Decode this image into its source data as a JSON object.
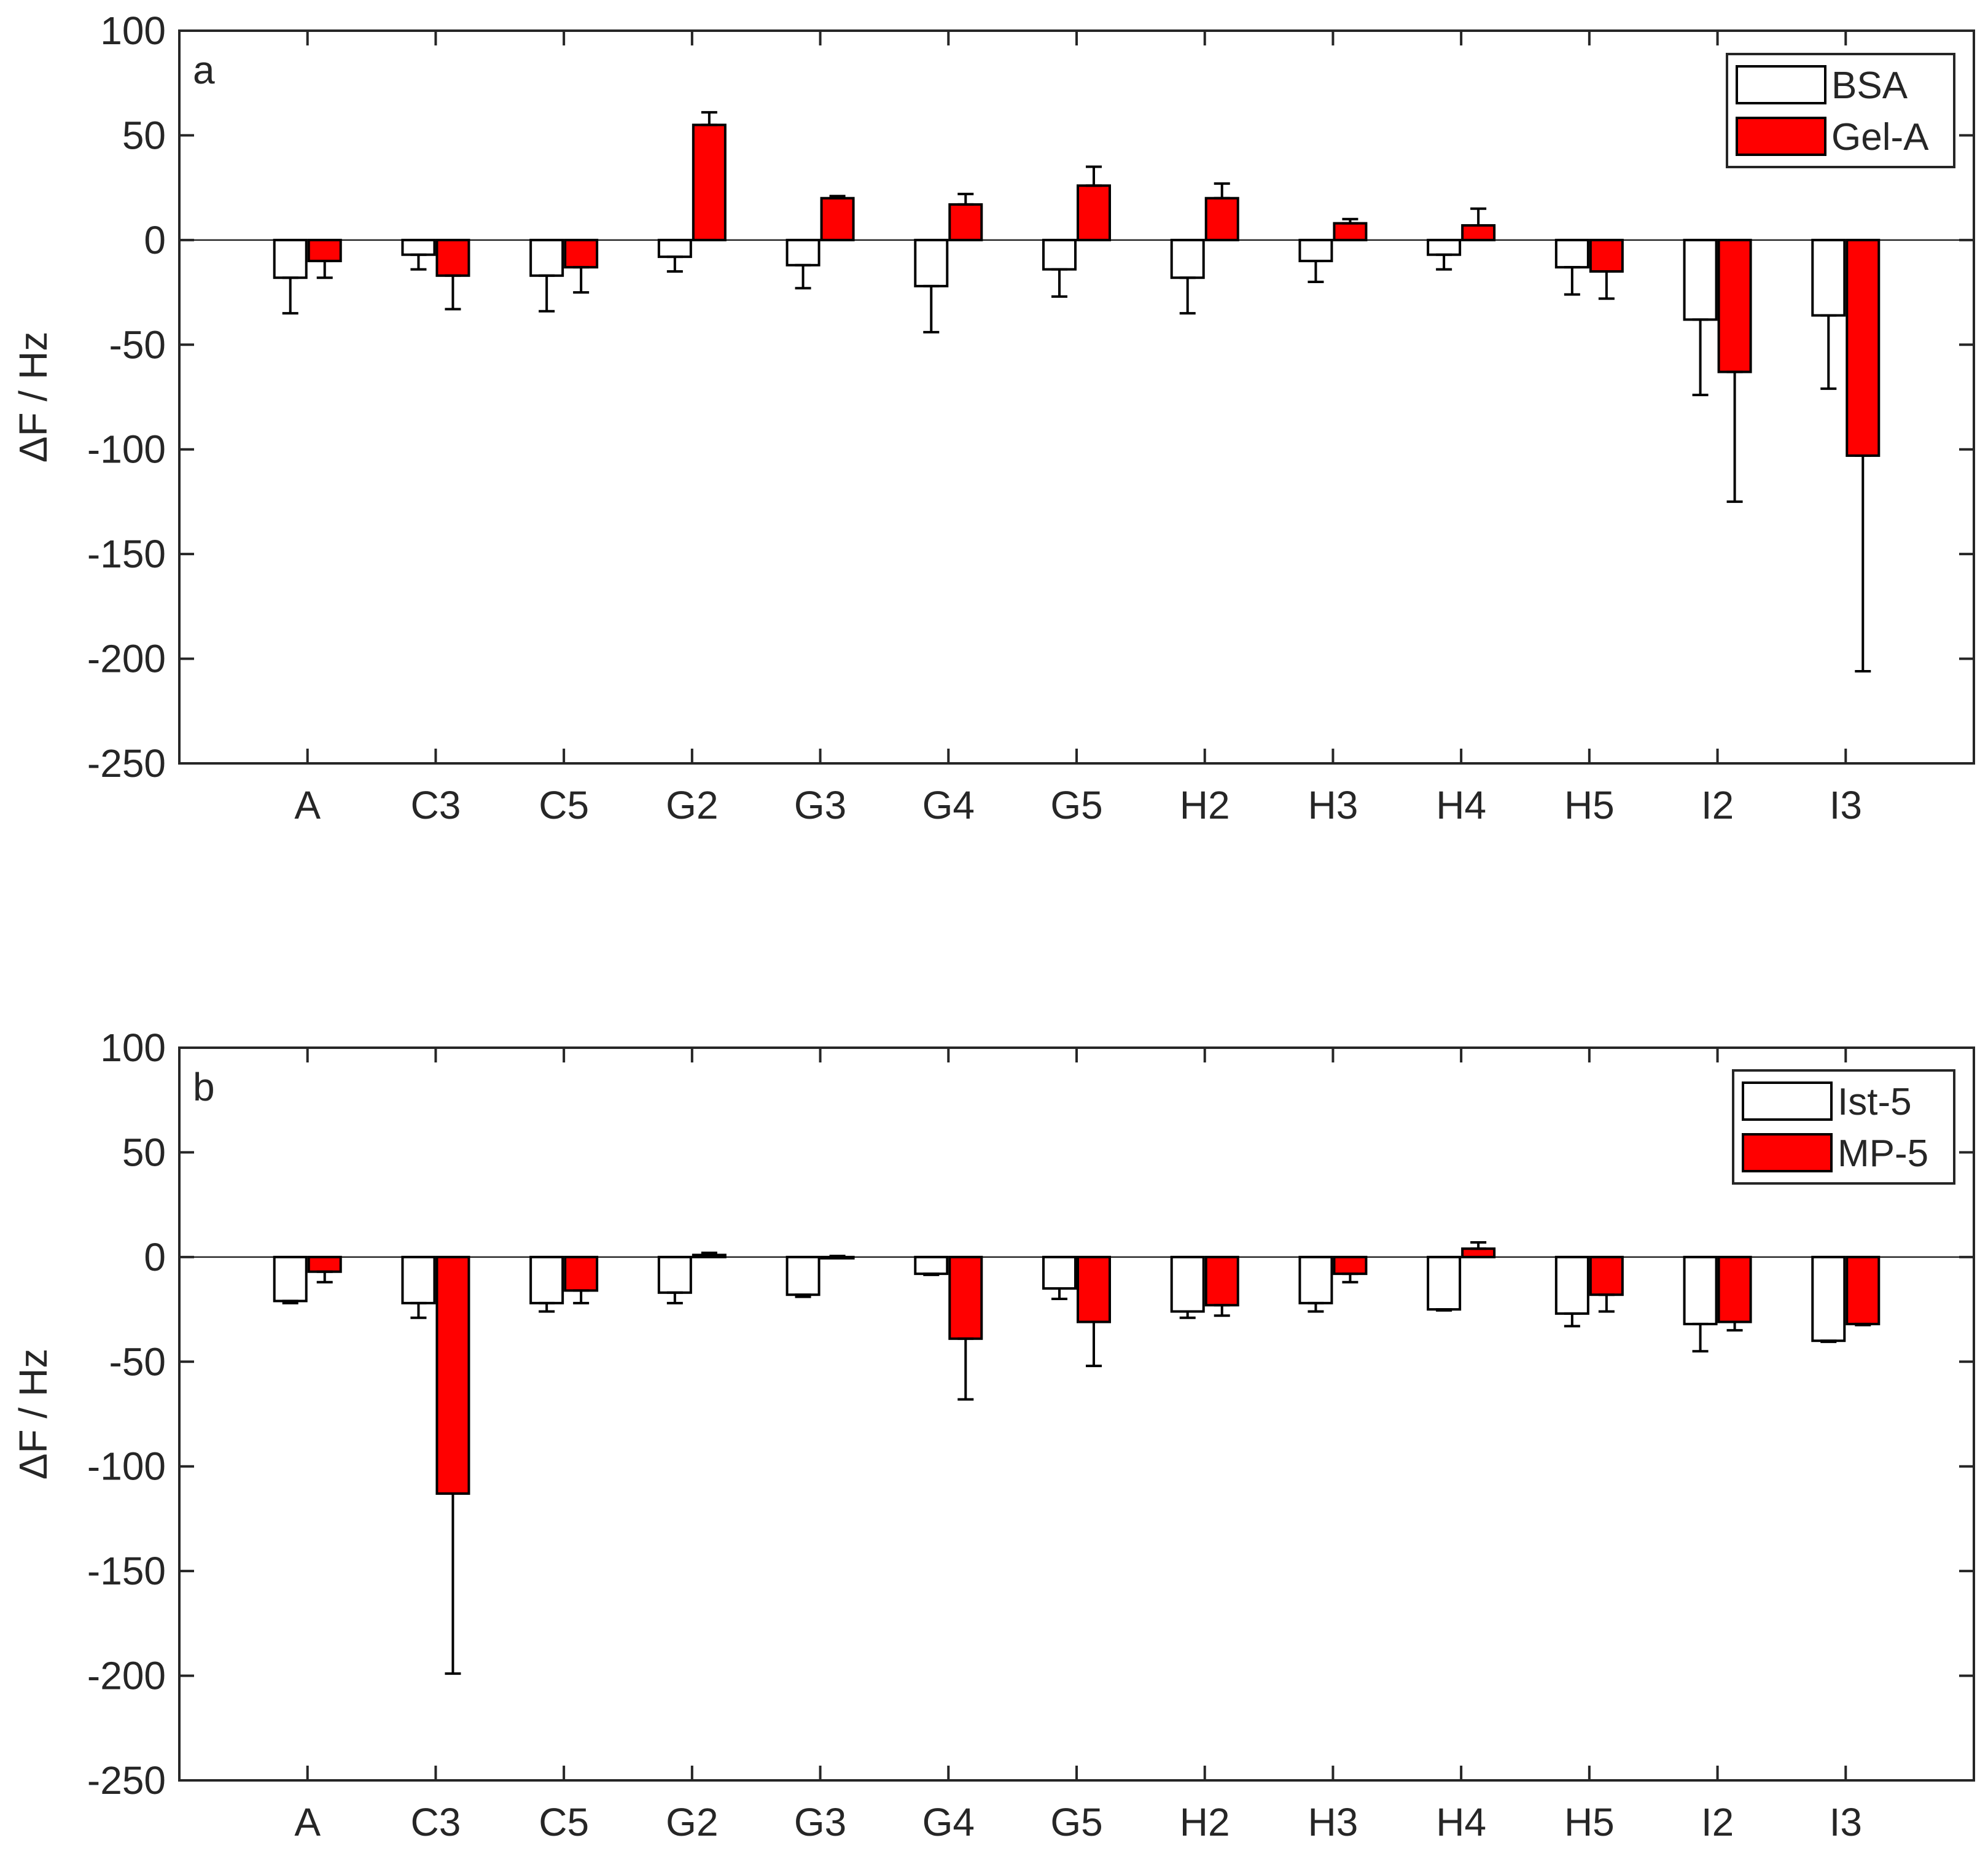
{
  "chart_data": [
    {
      "type": "bar",
      "panel_label": "a",
      "ylabel": "ΔF / Hz",
      "xlabel": "",
      "ylim": [
        -250,
        100
      ],
      "yticks": [
        100,
        50,
        0,
        -50,
        -100,
        -150,
        -200,
        -250
      ],
      "legend_position": "top-right",
      "categories": [
        "A",
        "C3",
        "C5",
        "G2",
        "G3",
        "G4",
        "G5",
        "H2",
        "H3",
        "H4",
        "H5",
        "I2",
        "I3"
      ],
      "series": [
        {
          "name": "BSA",
          "color": "#ffffff",
          "values": [
            -18,
            -7,
            -17,
            -8,
            -12,
            -22,
            -14,
            -18,
            -10,
            -7,
            -13,
            -38,
            -36
          ],
          "errors": [
            17,
            7,
            17,
            7,
            11,
            22,
            13,
            17,
            10,
            7,
            13,
            36,
            35
          ]
        },
        {
          "name": "Gel-A",
          "color": "#ff0000",
          "values": [
            -10,
            -17,
            -13,
            55,
            20,
            17,
            26,
            20,
            8,
            7,
            -15,
            -63,
            -103
          ],
          "errors": [
            8,
            16,
            12,
            6,
            1,
            5,
            9,
            7,
            2,
            8,
            13,
            62,
            103
          ]
        }
      ]
    },
    {
      "type": "bar",
      "panel_label": "b",
      "ylabel": "ΔF / Hz",
      "xlabel": "",
      "ylim": [
        -250,
        100
      ],
      "yticks": [
        100,
        50,
        0,
        -50,
        -100,
        -150,
        -200,
        -250
      ],
      "legend_position": "top-right",
      "categories": [
        "A",
        "C3",
        "C5",
        "G2",
        "G3",
        "G4",
        "G5",
        "H2",
        "H3",
        "H4",
        "H5",
        "I2",
        "I3"
      ],
      "series": [
        {
          "name": "Ist-5",
          "color": "#ffffff",
          "values": [
            -21,
            -22,
            -22,
            -17,
            -18,
            -8,
            -15,
            -26,
            -22,
            -25,
            -27,
            -32,
            -40
          ],
          "errors": [
            1,
            7,
            4,
            5,
            1,
            0.5,
            5,
            3,
            4,
            0.5,
            6,
            13,
            0.5
          ]
        },
        {
          "name": "MP-5",
          "color": "#ff0000",
          "values": [
            -7,
            -113,
            -16,
            1,
            0,
            -39,
            -31,
            -23,
            -8,
            4,
            -18,
            -31,
            -32
          ],
          "errors": [
            5,
            86,
            6,
            1,
            0.5,
            29,
            21,
            5,
            4,
            3,
            8,
            4,
            0.5
          ]
        }
      ]
    }
  ]
}
